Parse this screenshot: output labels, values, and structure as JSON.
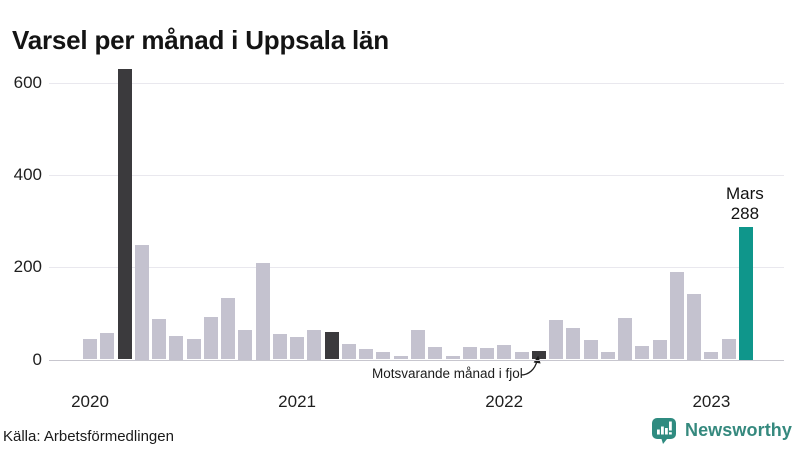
{
  "title": "Varsel per månad i Uppsala län",
  "source": "Källa: Arbetsförmedlingen",
  "branding": {
    "name": "Newsworthy"
  },
  "annotations": {
    "last_year": {
      "text": "Motsvarande månad i fjol",
      "target_index": 26
    },
    "current": {
      "line1": "Mars",
      "line2": "288",
      "target_index": 38
    }
  },
  "colors": {
    "bar_default": "#c4c2cf",
    "bar_dark": "#3b3a3d",
    "bar_current": "#0f968b",
    "brand_teal": "#2f8b80",
    "gridline": "#e9e8ee",
    "baseline": "#c7c6ce"
  },
  "chart_data": {
    "type": "bar",
    "title": "Varsel per månad i Uppsala län",
    "x": [
      "2020-01",
      "2020-02",
      "2020-03",
      "2020-04",
      "2020-05",
      "2020-06",
      "2020-07",
      "2020-08",
      "2020-09",
      "2020-10",
      "2020-11",
      "2020-12",
      "2021-01",
      "2021-02",
      "2021-03",
      "2021-04",
      "2021-05",
      "2021-06",
      "2021-07",
      "2021-08",
      "2021-09",
      "2021-10",
      "2021-11",
      "2021-12",
      "2022-01",
      "2022-02",
      "2022-03",
      "2022-04",
      "2022-05",
      "2022-06",
      "2022-07",
      "2022-08",
      "2022-09",
      "2022-10",
      "2022-11",
      "2022-12",
      "2023-01",
      "2023-02",
      "2023-03"
    ],
    "values": [
      44,
      57,
      630,
      248,
      88,
      51,
      44,
      93,
      133,
      64,
      210,
      55,
      48,
      64,
      60,
      34,
      23,
      17,
      8,
      63,
      28,
      8,
      28,
      24,
      31,
      17,
      19,
      86,
      69,
      42,
      16,
      91,
      30,
      42,
      190,
      143,
      16,
      44,
      288
    ],
    "dark_indices": [
      2,
      14,
      26
    ],
    "current_index": 38,
    "xticks": [
      {
        "label": "2020",
        "index": 0
      },
      {
        "label": "2021",
        "index": 12
      },
      {
        "label": "2022",
        "index": 24
      },
      {
        "label": "2023",
        "index": 36
      }
    ],
    "yticks": [
      0,
      200,
      400,
      600
    ],
    "ylim": [
      0,
      650
    ],
    "grid": "horizontal",
    "legend": "none",
    "ylabel": "",
    "xlabel": ""
  }
}
